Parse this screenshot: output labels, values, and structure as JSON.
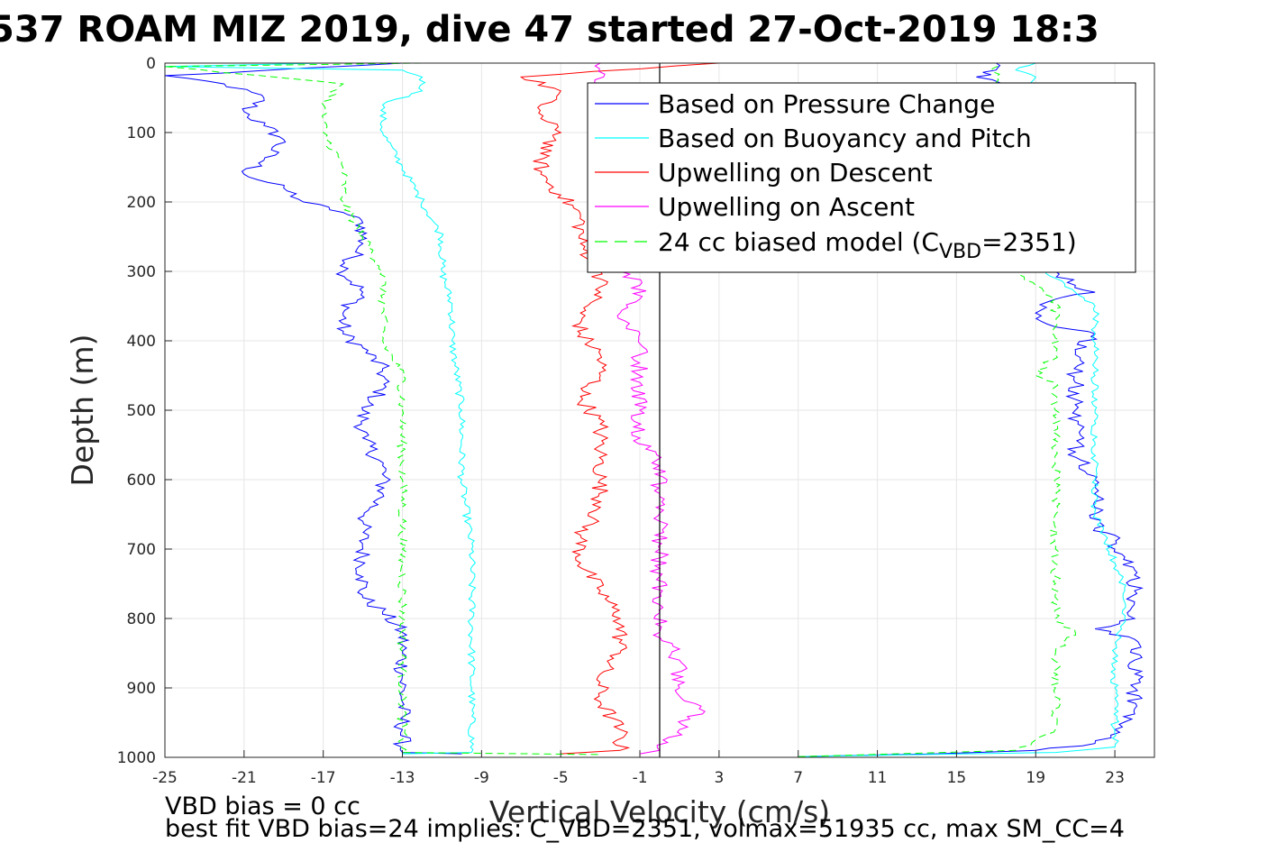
{
  "chart_data": {
    "type": "line",
    "title": "537 ROAM MIZ 2019, dive 47 started 27-Oct-2019 18:3",
    "xlabel": "Vertical Velocity (cm/s)",
    "ylabel": "Depth (m)",
    "xlim": [
      -25,
      25
    ],
    "ylim": [
      0,
      1000
    ],
    "y_reversed": true,
    "grid": true,
    "xticks": [
      -25,
      -21,
      -17,
      -13,
      -9,
      -5,
      -1,
      3,
      7,
      11,
      15,
      19,
      23
    ],
    "yticks": [
      0,
      100,
      200,
      300,
      400,
      500,
      600,
      700,
      800,
      900,
      1000
    ],
    "zero_line_x": 0,
    "legend_position": "top-right",
    "series": [
      {
        "name": "Based on Pressure Change",
        "color": "#0000ff",
        "style": "solid",
        "descent": [
          [
            -13,
            0
          ],
          [
            -25,
            18
          ],
          [
            -22,
            30
          ],
          [
            -20,
            50
          ],
          [
            -21,
            70
          ],
          [
            -20,
            90
          ],
          [
            -19,
            110
          ],
          [
            -20,
            140
          ],
          [
            -21,
            160
          ],
          [
            -19,
            180
          ],
          [
            -18,
            200
          ],
          [
            -16,
            215
          ],
          [
            -15,
            230
          ],
          [
            -15,
            260
          ],
          [
            -16,
            300
          ],
          [
            -15,
            330
          ],
          [
            -16,
            360
          ],
          [
            -16,
            390
          ],
          [
            -15,
            410
          ],
          [
            -14,
            440
          ],
          [
            -14,
            470
          ],
          [
            -15,
            500
          ],
          [
            -15,
            540
          ],
          [
            -14,
            580
          ],
          [
            -14,
            620
          ],
          [
            -15,
            660
          ],
          [
            -15,
            700
          ],
          [
            -15,
            740
          ],
          [
            -15,
            770
          ],
          [
            -14,
            790
          ],
          [
            -13,
            820
          ],
          [
            -13,
            850
          ],
          [
            -13,
            880
          ],
          [
            -13,
            920
          ],
          [
            -13,
            960
          ],
          [
            -13,
            993
          ],
          [
            -10,
            995
          ]
        ],
        "ascent": [
          [
            7,
            999
          ],
          [
            14,
            995
          ],
          [
            19,
            990
          ],
          [
            22,
            980
          ],
          [
            23,
            960
          ],
          [
            24,
            930
          ],
          [
            24,
            900
          ],
          [
            24,
            860
          ],
          [
            24,
            830
          ],
          [
            22,
            815
          ],
          [
            24,
            800
          ],
          [
            24,
            760
          ],
          [
            24,
            730
          ],
          [
            23,
            700
          ],
          [
            23,
            680
          ],
          [
            22,
            670
          ],
          [
            22,
            640
          ],
          [
            22,
            600
          ],
          [
            21,
            560
          ],
          [
            21,
            500
          ],
          [
            21,
            460
          ],
          [
            21,
            420
          ],
          [
            22,
            390
          ],
          [
            20,
            380
          ],
          [
            19,
            360
          ],
          [
            20,
            340
          ],
          [
            22,
            330
          ],
          [
            21,
            320
          ],
          [
            20,
            300
          ],
          [
            19,
            295
          ],
          [
            18,
            40
          ],
          [
            16,
            20
          ],
          [
            17,
            10
          ],
          [
            17,
            0
          ]
        ]
      },
      {
        "name": "Based on Buoyancy and Pitch",
        "color": "#00ffff",
        "style": "solid",
        "descent": [
          [
            -17,
            0
          ],
          [
            -25,
            5
          ],
          [
            -13,
            10
          ],
          [
            -12,
            20
          ],
          [
            -12,
            40
          ],
          [
            -14,
            60
          ],
          [
            -14,
            100
          ],
          [
            -13,
            150
          ],
          [
            -12,
            200
          ],
          [
            -11,
            250
          ],
          [
            -11,
            300
          ],
          [
            -10.5,
            350
          ],
          [
            -10.5,
            400
          ],
          [
            -10,
            500
          ],
          [
            -10,
            600
          ],
          [
            -9.5,
            700
          ],
          [
            -9.5,
            800
          ],
          [
            -9.5,
            900
          ],
          [
            -9.5,
            993
          ],
          [
            -13,
            995
          ]
        ],
        "ascent": [
          [
            7,
            999
          ],
          [
            20,
            993
          ],
          [
            23,
            985
          ],
          [
            23,
            960
          ],
          [
            23,
            930
          ],
          [
            23,
            900
          ],
          [
            23,
            850
          ],
          [
            23.5,
            800
          ],
          [
            23.5,
            760
          ],
          [
            23,
            720
          ],
          [
            22.5,
            680
          ],
          [
            22,
            650
          ],
          [
            22,
            600
          ],
          [
            22,
            550
          ],
          [
            22,
            500
          ],
          [
            22,
            450
          ],
          [
            22,
            420
          ],
          [
            22,
            380
          ],
          [
            22,
            350
          ],
          [
            21,
            330
          ],
          [
            20,
            310
          ],
          [
            19.5,
            300
          ],
          [
            19,
            290
          ],
          [
            18,
            40
          ],
          [
            19,
            20
          ],
          [
            18,
            10
          ],
          [
            19,
            0
          ]
        ]
      },
      {
        "name": "Upwelling on Descent",
        "color": "#ff0000",
        "style": "solid",
        "descent": [
          [
            3,
            0
          ],
          [
            -7,
            20
          ],
          [
            -5,
            40
          ],
          [
            -6,
            60
          ],
          [
            -6,
            80
          ],
          [
            -5,
            100
          ],
          [
            -6,
            130
          ],
          [
            -6,
            160
          ],
          [
            -5,
            190
          ],
          [
            -4,
            220
          ],
          [
            -4,
            260
          ],
          [
            -3,
            300
          ],
          [
            -3,
            330
          ],
          [
            -4,
            360
          ],
          [
            -4,
            390
          ],
          [
            -3,
            420
          ],
          [
            -3,
            450
          ],
          [
            -4,
            480
          ],
          [
            -3,
            520
          ],
          [
            -3,
            560
          ],
          [
            -3,
            600
          ],
          [
            -3,
            640
          ],
          [
            -4,
            680
          ],
          [
            -4,
            720
          ],
          [
            -3,
            760
          ],
          [
            -2,
            800
          ],
          [
            -2,
            850
          ],
          [
            -3,
            880
          ],
          [
            -3,
            920
          ],
          [
            -2,
            960
          ],
          [
            -2,
            990
          ],
          [
            -5,
            995
          ]
        ]
      },
      {
        "name": "Upwelling on Ascent",
        "color": "#ff00ff",
        "style": "solid",
        "descent": [
          [
            -1,
            995
          ],
          [
            0,
            990
          ],
          [
            1,
            960
          ],
          [
            2,
            930
          ],
          [
            1,
            900
          ],
          [
            1,
            860
          ],
          [
            0,
            820
          ],
          [
            0,
            780
          ],
          [
            0,
            740
          ],
          [
            0,
            700
          ],
          [
            0,
            660
          ],
          [
            0,
            620
          ],
          [
            0,
            580
          ],
          [
            -1,
            540
          ],
          [
            -1,
            500
          ],
          [
            -1,
            460
          ],
          [
            -1,
            420
          ],
          [
            -1,
            390
          ],
          [
            -2,
            360
          ],
          [
            -1,
            340
          ],
          [
            -1,
            320
          ],
          [
            -2,
            300
          ],
          [
            -3,
            0
          ]
        ]
      },
      {
        "name": "24 cc biased model (C_VBD=2351)",
        "color": "#00ff00",
        "style": "dashed",
        "descent": [
          [
            -12,
            0
          ],
          [
            -25,
            5
          ],
          [
            -16,
            30
          ],
          [
            -17,
            60
          ],
          [
            -17,
            100
          ],
          [
            -16,
            150
          ],
          [
            -16,
            200
          ],
          [
            -15,
            250
          ],
          [
            -14,
            300
          ],
          [
            -14,
            350
          ],
          [
            -14,
            400
          ],
          [
            -13,
            450
          ],
          [
            -13,
            500
          ],
          [
            -13,
            600
          ],
          [
            -13,
            700
          ],
          [
            -13,
            800
          ],
          [
            -13,
            900
          ],
          [
            -13,
            993
          ],
          [
            -3,
            996
          ]
        ],
        "ascent": [
          [
            7,
            999
          ],
          [
            18,
            990
          ],
          [
            20,
            960
          ],
          [
            20,
            900
          ],
          [
            20,
            850
          ],
          [
            21,
            820
          ],
          [
            20,
            800
          ],
          [
            20,
            750
          ],
          [
            20,
            700
          ],
          [
            20,
            650
          ],
          [
            20,
            600
          ],
          [
            20,
            550
          ],
          [
            20,
            500
          ],
          [
            20,
            460
          ],
          [
            19,
            450
          ],
          [
            20,
            420
          ],
          [
            20,
            380
          ],
          [
            20,
            340
          ],
          [
            19,
            320
          ],
          [
            18,
            300
          ],
          [
            17,
            40
          ],
          [
            17,
            20
          ],
          [
            17,
            0
          ]
        ]
      }
    ],
    "legend": [
      {
        "label": "Based on Pressure Change",
        "color": "#0000ff",
        "dash": false
      },
      {
        "label": "Based on Buoyancy and Pitch",
        "color": "#00ffff",
        "dash": false
      },
      {
        "label": "Upwelling on Descent",
        "color": "#ff0000",
        "dash": false
      },
      {
        "label": "Upwelling on Ascent",
        "color": "#ff00ff",
        "dash": false
      },
      {
        "label_main": "24 cc biased model (C",
        "label_sub": "VBD",
        "label_tail": "=2351)",
        "color": "#00ff00",
        "dash": true
      }
    ],
    "annotations": [
      "VBD bias = 0 cc",
      "best fit VBD bias=24 implies: C_VBD=2351, volmax=51935 cc, max SM_CC=4"
    ]
  }
}
